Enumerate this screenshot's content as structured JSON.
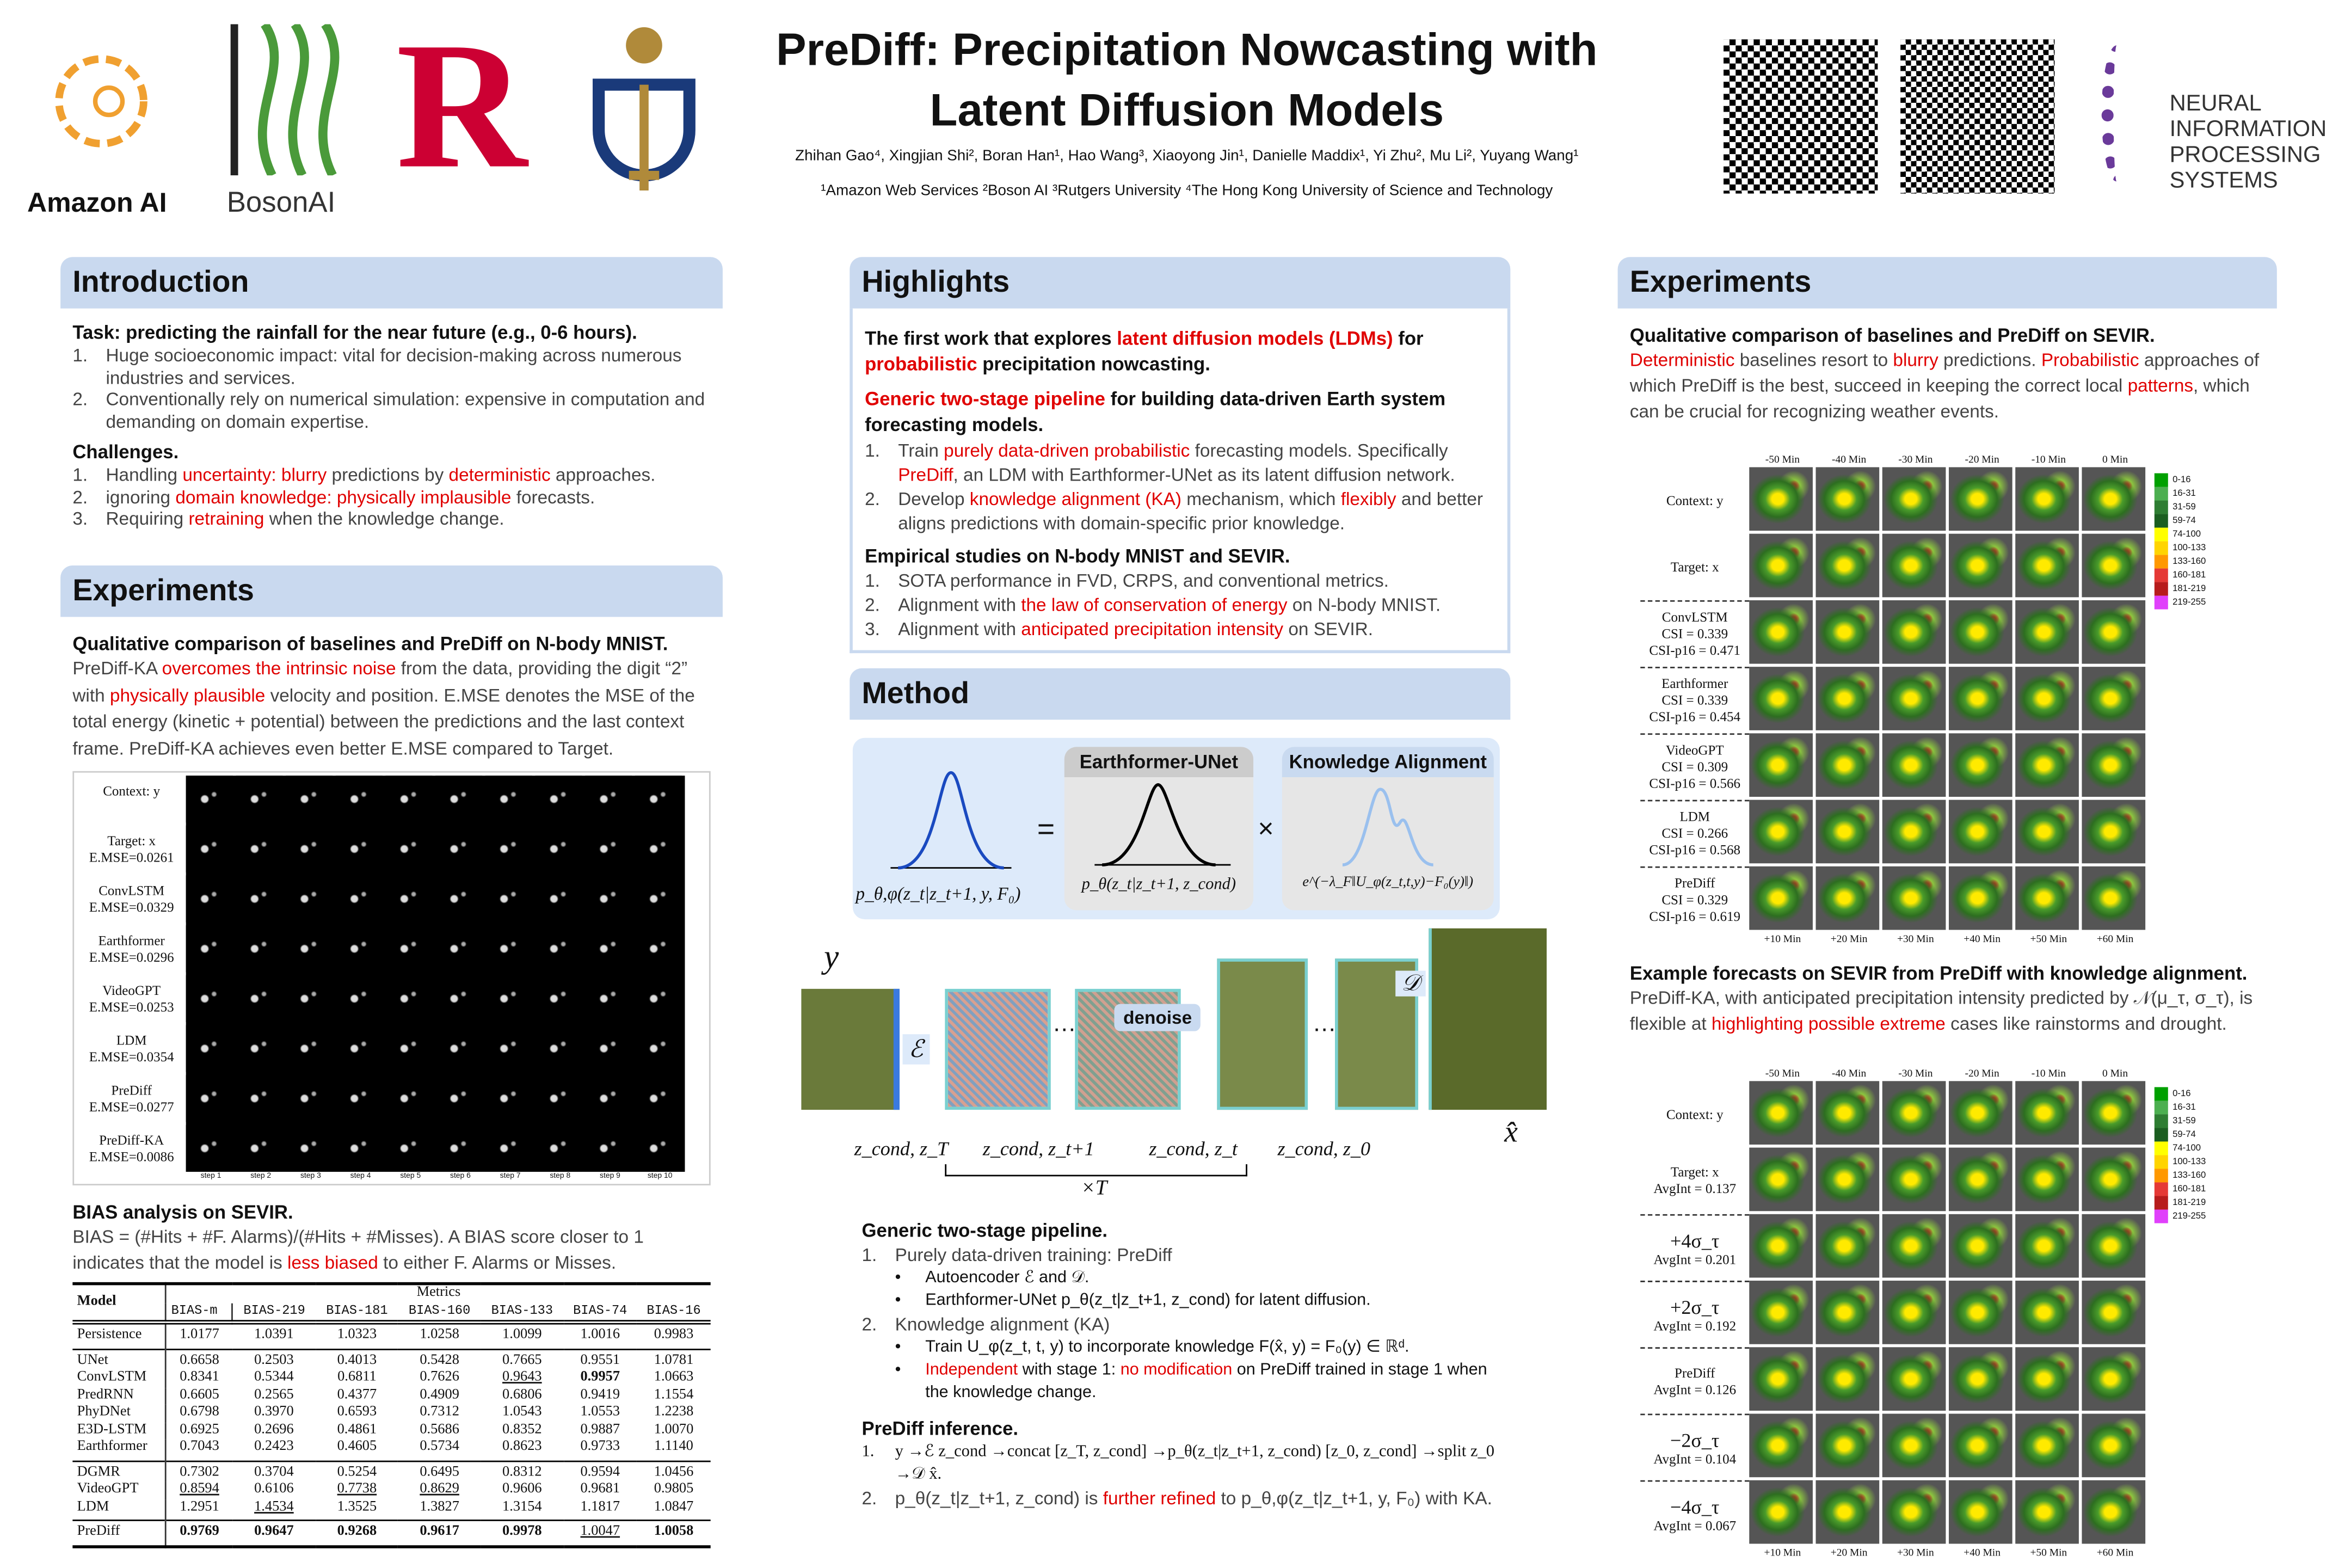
{
  "header": {
    "title_line1": "PreDiff: Precipitation Nowcasting with",
    "title_line2": "Latent Diffusion Models",
    "authors": "Zhihan Gao⁴, Xingjian Shi², Boran Han¹, Hao Wang³, Xiaoyong Jin¹, Danielle Maddix¹, Yi Zhu², Mu Li², Yuyang Wang¹",
    "affiliations": "¹Amazon Web Services ²Boson AI ³Rutgers University  ⁴The Hong Kong University of Science and Technology",
    "logos": {
      "amazon": "Amazon AI",
      "boson": "BosonAI",
      "rutgers": "R",
      "neurips": [
        "NEURAL",
        "INFORMATION",
        "PROCESSING",
        "SYSTEMS"
      ]
    }
  },
  "intro": {
    "heading": "Introduction",
    "task": "Task: predicting the rainfall for the near future (e.g., 0-6 hours).",
    "task_items": [
      "Huge socioeconomic impact: vital for decision-making across numerous industries and services.",
      "Conventionally rely on numerical simulation: expensive in computation and demanding on domain expertise."
    ],
    "challenges": "Challenges.",
    "challenge_items": [
      [
        {
          "t": "Handling "
        },
        {
          "t": "uncertainty: blurry",
          "r": 1
        },
        {
          "t": " predictions by "
        },
        {
          "t": "deterministic",
          "r": 1
        },
        {
          "t": " approaches."
        }
      ],
      [
        {
          "t": "ignoring "
        },
        {
          "t": "domain knowledge: physically implausible",
          "r": 1
        },
        {
          "t": " forecasts."
        }
      ],
      [
        {
          "t": "Requiring "
        },
        {
          "t": "retraining",
          "r": 1
        },
        {
          "t": " when the knowledge change."
        }
      ]
    ]
  },
  "exp_left": {
    "heading": "Experiments",
    "sub1": "Qualitative comparison of baselines and PreDiff on N-body MNIST.",
    "para1": [
      {
        "t": "PreDiff-KA "
      },
      {
        "t": "overcomes the intrinsic noise",
        "r": 1
      },
      {
        "t": " from the data, providing the digit “2” with "
      },
      {
        "t": "physically plausible",
        "r": 1
      },
      {
        "t": " velocity and position. E.MSE denotes the MSE of the total energy (kinetic + potential) between the predictions and the last context frame. PreDiff-KA achieves even better E.MSE compared to Target."
      }
    ],
    "mnist_rows": [
      [
        "Context: y",
        ""
      ],
      [
        "Target: x",
        "E.MSE=0.0261"
      ],
      [
        "ConvLSTM",
        "E.MSE=0.0329"
      ],
      [
        "Earthformer",
        "E.MSE=0.0296"
      ],
      [
        "VideoGPT",
        "E.MSE=0.0253"
      ],
      [
        "LDM",
        "E.MSE=0.0354"
      ],
      [
        "PreDiff",
        "E.MSE=0.0277"
      ],
      [
        "PreDiff-KA",
        "E.MSE=0.0086"
      ]
    ],
    "mnist_steps": [
      "step 1",
      "step 2",
      "step 3",
      "step 4",
      "step 5",
      "step 6",
      "step 7",
      "step 8",
      "step 9",
      "step 10"
    ],
    "sub2": "BIAS analysis on SEVIR.",
    "para2": [
      {
        "t": "BIAS = (#Hits + #F. Alarms)/(#Hits + #Misses). A BIAS score closer to 1 indicates that the model is "
      },
      {
        "t": "less biased",
        "r": 1
      },
      {
        "t": " to either F. Alarms or Misses."
      }
    ],
    "table": {
      "model_header": "Model",
      "metrics_header": "Metrics",
      "columns": [
        "BIAS-m",
        "BIAS-219",
        "BIAS-181",
        "BIAS-160",
        "BIAS-133",
        "BIAS-74",
        "BIAS-16"
      ],
      "groups": [
        [
          [
            "Persistence",
            "1.0177",
            "1.0391",
            "1.0323",
            "1.0258",
            "1.0099",
            "1.0016",
            "0.9983"
          ]
        ],
        [
          [
            "UNet",
            "0.6658",
            "0.2503",
            "0.4013",
            "0.5428",
            "0.7665",
            "0.9551",
            "1.0781"
          ],
          [
            "ConvLSTM",
            "0.8341",
            "0.5344",
            "0.6811",
            "0.7626",
            "0.9643",
            "0.9957",
            "1.0663"
          ],
          [
            "PredRNN",
            "0.6605",
            "0.2565",
            "0.4377",
            "0.4909",
            "0.6806",
            "0.9419",
            "1.1554"
          ],
          [
            "PhyDNet",
            "0.6798",
            "0.3970",
            "0.6593",
            "0.7312",
            "1.0543",
            "1.0553",
            "1.2238"
          ],
          [
            "E3D-LSTM",
            "0.6925",
            "0.2696",
            "0.4861",
            "0.5686",
            "0.8352",
            "0.9887",
            "1.0070"
          ],
          [
            "Earthformer",
            "0.7043",
            "0.2423",
            "0.4605",
            "0.5734",
            "0.8623",
            "0.9733",
            "1.1140"
          ]
        ],
        [
          [
            "DGMR",
            "0.7302",
            "0.3704",
            "0.5254",
            "0.6495",
            "0.8312",
            "0.9594",
            "1.0456"
          ],
          [
            "VideoGPT",
            "0.8594",
            "0.6106",
            "0.7738",
            "0.8629",
            "0.9606",
            "0.9681",
            "0.9805"
          ],
          [
            "LDM",
            "1.2951",
            "1.4534",
            "1.3525",
            "1.3827",
            "1.3154",
            "1.1817",
            "1.0847"
          ]
        ],
        [
          [
            "PreDiff",
            "0.9769",
            "0.9647",
            "0.9268",
            "0.9617",
            "0.9978",
            "1.0047",
            "1.0058"
          ]
        ]
      ],
      "bold": [
        "ConvLSTM:6",
        "PreDiff:1",
        "PreDiff:2",
        "PreDiff:3",
        "PreDiff:4",
        "PreDiff:5",
        "PreDiff:7"
      ],
      "underline": [
        "ConvLSTM:5",
        "VideoGPT:1",
        "VideoGPT:3",
        "VideoGPT:4",
        "LDM:2",
        "PreDiff:6"
      ]
    }
  },
  "highlights": {
    "heading": "Highlights",
    "p1": [
      {
        "t": "The first work that explores "
      },
      {
        "t": "latent diffusion models (LDMs)",
        "r": 1
      },
      {
        "t": " for "
      },
      {
        "t": "probabilistic",
        "r": 1
      },
      {
        "t": " precipitation nowcasting."
      }
    ],
    "p2": [
      {
        "t": "Generic two-stage pipeline",
        "r": 1
      },
      {
        "t": " for building data-driven Earth system forecasting models."
      }
    ],
    "p2_items": [
      [
        {
          "t": "Train "
        },
        {
          "t": "purely data-driven probabilistic",
          "r": 1
        },
        {
          "t": " forecasting models. Specifically "
        },
        {
          "t": "PreDiff",
          "r": 1
        },
        {
          "t": ", an LDM with Earthformer-UNet as its latent diffusion network."
        }
      ],
      [
        {
          "t": "Develop "
        },
        {
          "t": "knowledge alignment (KA)",
          "r": 1
        },
        {
          "t": " mechanism, which "
        },
        {
          "t": "flexibly",
          "r": 1
        },
        {
          "t": " and better aligns predictions with domain-specific prior knowledge."
        }
      ]
    ],
    "p3": "Empirical studies on N-body MNIST and SEVIR.",
    "p3_items": [
      [
        {
          "t": "SOTA performance in FVD, CRPS, and conventional metrics."
        }
      ],
      [
        {
          "t": "Alignment with "
        },
        {
          "t": "the law of conservation of energy",
          "r": 1
        },
        {
          "t": " on N-body MNIST."
        }
      ],
      [
        {
          "t": "Alignment with "
        },
        {
          "t": "anticipated precipitation intensity",
          "r": 1
        },
        {
          "t": " on SEVIR."
        }
      ]
    ]
  },
  "method": {
    "heading": "Method",
    "earthformer": "Earthformer-UNet",
    "ka": "Knowledge Alignment",
    "eq_left": "p_θ,φ(z_t|z_t+1, y, F₀)",
    "eq_mid": "p_θ(z_t|z_t+1, z_cond)",
    "eq_right": "e^(−λ_F‖U_φ(z_t,t,y)−F₀(y)‖)",
    "eq_sign": "=",
    "times": "×",
    "y": "y",
    "enc": "ℰ",
    "dec": "𝒟",
    "denoise": "denoise",
    "dots": "…",
    "xhat": "x̂",
    "zlabels": [
      "z_cond, z_T",
      "z_cond, z_t+1",
      "z_cond, z_t",
      "z_cond, z_0"
    ],
    "timesT": "×T",
    "pipe_head": "Generic two-stage pipeline.",
    "pipe1": "Purely data-driven training: PreDiff",
    "pipe1a": "Autoencoder ℰ and 𝒟.",
    "pipe1b": "Earthformer-UNet p_θ(z_t|z_t+1, z_cond) for latent diffusion.",
    "pipe2": "Knowledge alignment (KA)",
    "pipe2a": "Train U_φ(z_t, t, y) to incorporate knowledge F(x̂, y) = F₀(y) ∈ ℝᵈ.",
    "pipe2b": [
      {
        "t": "Independent",
        "r": 1
      },
      {
        "t": " with stage 1: "
      },
      {
        "t": "no modification",
        "r": 1
      },
      {
        "t": " on PreDiff trained in stage 1 when the knowledge change."
      }
    ],
    "inf_head": "PreDiff inference.",
    "inf1": "y →ℰ z_cond →concat [z_T, z_cond] →p_θ(z_t|z_t+1, z_cond) [z_0, z_cond] →split z_0 →𝒟 x̂.",
    "inf2": [
      {
        "t": "p_θ(z_t|z_t+1, z_cond) is "
      },
      {
        "t": "further refined",
        "r": 1
      },
      {
        "t": " to p_θ,φ(z_t|z_t+1, y, F₀) with KA."
      }
    ]
  },
  "exp_right": {
    "heading": "Experiments",
    "sub1": "Qualitative comparison of baselines and PreDiff on SEVIR.",
    "para1": [
      {
        "t": "Deterministic",
        "r": 1
      },
      {
        "t": " baselines resort to "
      },
      {
        "t": "blurry",
        "r": 1
      },
      {
        "t": " predictions. "
      },
      {
        "t": "Probabilistic",
        "r": 1
      },
      {
        "t": " approaches of which PreDiff is the best, succeed in keeping the correct local "
      },
      {
        "t": "patterns",
        "r": 1
      },
      {
        "t": ", which can be crucial for recognizing weather events."
      }
    ],
    "top_times": [
      "-50 Min",
      "-40 Min",
      "-30 Min",
      "-20 Min",
      "-10 Min",
      "0 Min"
    ],
    "bottom_times": [
      "+10 Min",
      "+20 Min",
      "+30 Min",
      "+40 Min",
      "+50 Min",
      "+60 Min"
    ],
    "grid1_rows": [
      [
        "Context: y"
      ],
      [
        "Target: x"
      ],
      [
        "ConvLSTM",
        "CSI = 0.339",
        "CSI-p16 = 0.471"
      ],
      [
        "Earthformer",
        "CSI = 0.339",
        "CSI-p16 = 0.454"
      ],
      [
        "VideoGPT",
        "CSI = 0.309",
        "CSI-p16 = 0.566"
      ],
      [
        "LDM",
        "CSI = 0.266",
        "CSI-p16 = 0.568"
      ],
      [
        "PreDiff",
        "CSI = 0.329",
        "CSI-p16 = 0.619"
      ]
    ],
    "legend": [
      "0-16",
      "16-31",
      "31-59",
      "59-74",
      "74-100",
      "100-133",
      "133-160",
      "160-181",
      "181-219",
      "219-255"
    ],
    "legend_colors": [
      "#00a000",
      "#4caf50",
      "#2e7d32",
      "#1b5e20",
      "#ffff00",
      "#ffd400",
      "#ff9800",
      "#e53935",
      "#b71c1c",
      "#e040fb"
    ],
    "sub2": "Example forecasts on SEVIR from PreDiff with knowledge alignment.",
    "para2": [
      {
        "t": "PreDiff-KA, with anticipated precipitation intensity predicted by 𝒩(μ_τ, σ_τ), is flexible at "
      },
      {
        "t": "highlighting possible extreme",
        "r": 1
      },
      {
        "t": " cases like rainstorms and drought."
      }
    ],
    "grid2_rows": [
      [
        "Context: y"
      ],
      [
        "Target: x",
        "AvgInt = 0.137"
      ],
      [
        "+4σ_τ",
        "AvgInt = 0.201"
      ],
      [
        "+2σ_τ",
        "AvgInt = 0.192"
      ],
      [
        "PreDiff",
        "AvgInt = 0.126"
      ],
      [
        "−2σ_τ",
        "AvgInt = 0.104"
      ],
      [
        "−4σ_τ",
        "AvgInt = 0.067"
      ]
    ]
  }
}
